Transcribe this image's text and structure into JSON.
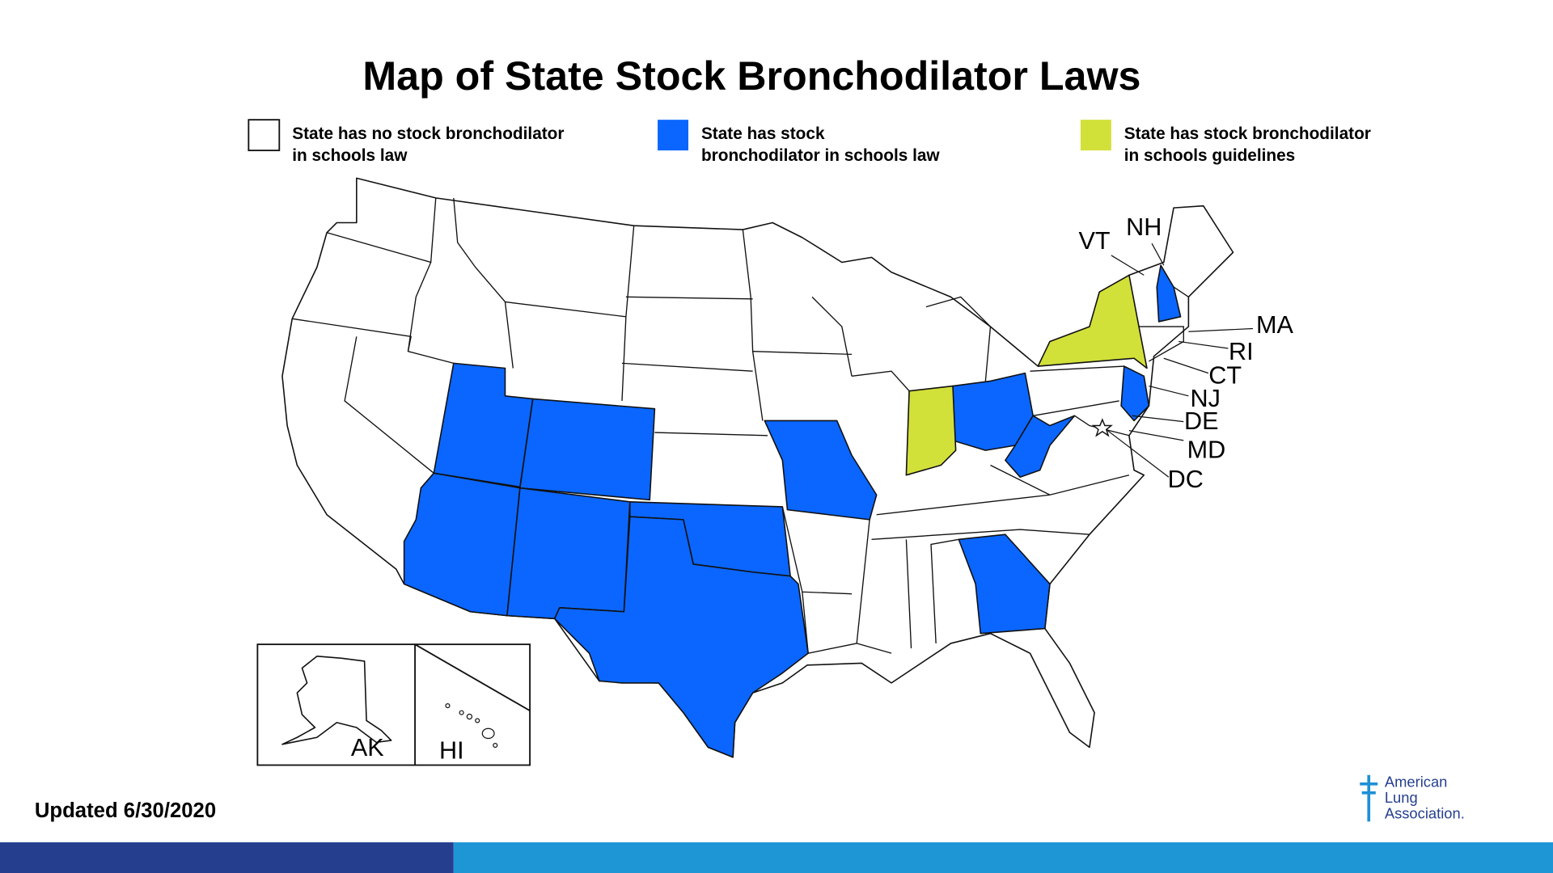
{
  "title": "Map of State Stock Bronchodilator Laws",
  "legend": [
    {
      "label": [
        "State has no stock bronchodilator",
        "in schools law"
      ],
      "color": "#ffffff"
    },
    {
      "label": [
        "State has stock",
        "bronchodilator in schools law"
      ],
      "color": "#0a66ff"
    },
    {
      "label": [
        "State has stock bronchodilator",
        "in schools guidelines"
      ],
      "color": "#d2e03a"
    }
  ],
  "state_labels": [
    "VT",
    "NH",
    "MA",
    "RI",
    "CT",
    "NJ",
    "DE",
    "MD",
    "DC"
  ],
  "inset_labels": [
    "AK",
    "HI"
  ],
  "updated": "Updated 6/30/2020",
  "logo": [
    "American",
    "Lung",
    "Association."
  ]
}
